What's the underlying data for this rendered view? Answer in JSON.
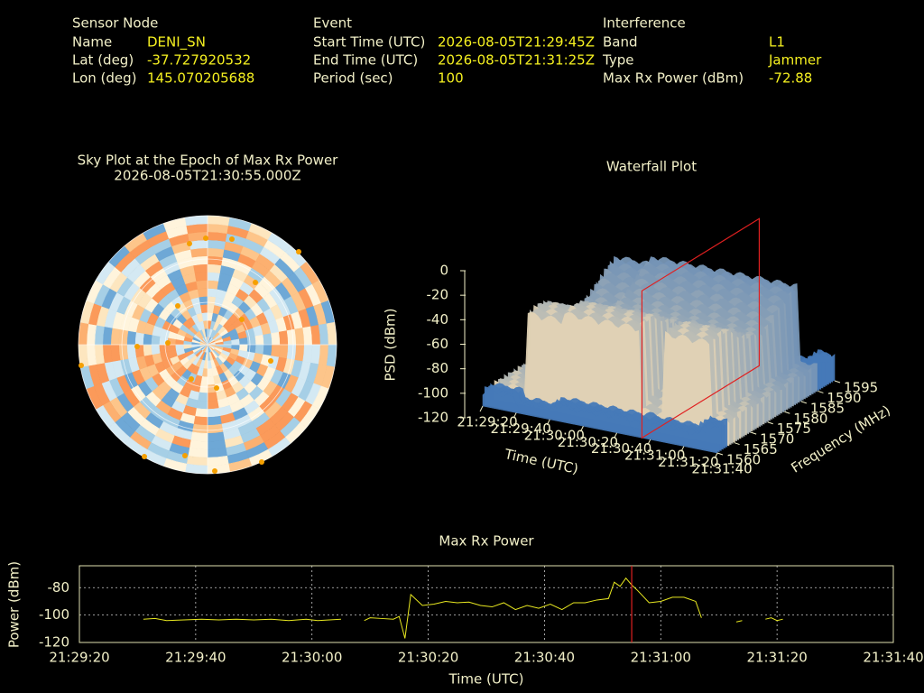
{
  "info": [
    {
      "title": "Sensor Node",
      "rows": [
        [
          "Name",
          "DENI_SN"
        ],
        [
          "Lat (deg)",
          "-37.727920532"
        ],
        [
          "Lon (deg)",
          "145.070205688"
        ]
      ]
    },
    {
      "title": "Event",
      "rows": [
        [
          "Start Time (UTC)",
          "2026-08-05T21:29:45Z"
        ],
        [
          "End Time (UTC)",
          "2026-08-05T21:31:25Z"
        ],
        [
          "Period (sec)",
          "100"
        ]
      ]
    },
    {
      "title": "Interference",
      "rows": [
        [
          "Band",
          "L1"
        ],
        [
          "Type",
          "Jammer"
        ],
        [
          "Max Rx Power (dBm)",
          "-72.88"
        ]
      ]
    }
  ],
  "chart_data": [
    {
      "type": "polar",
      "title": "Sky Plot at the Epoch of Max Rx Power",
      "subtitle": "2026-08-05T21:30:55.000Z"
    },
    {
      "type": "surface3d",
      "title": "Waterfall Plot",
      "xlabel": "Time (UTC)",
      "ylabel": "Frequency (MHz)",
      "zlabel": "PSD (dBm)",
      "xlim": [
        "21:29:20",
        "21:31:40"
      ],
      "xticks": [
        "21:29:20",
        "21:29:40",
        "21:30:00",
        "21:30:20",
        "21:30:40",
        "21:31:00",
        "21:31:20",
        "21:31:40"
      ],
      "ylim": [
        1560,
        1595
      ],
      "yticks": [
        1560,
        1565,
        1570,
        1575,
        1580,
        1585,
        1590,
        1595
      ],
      "zlim": [
        -120,
        0
      ],
      "zticks": [
        0,
        -20,
        -40,
        -60,
        -80,
        -100,
        -120
      ],
      "marker_x": "21:30:55",
      "marker_color": "#e02020"
    },
    {
      "type": "line",
      "title": "Max Rx Power",
      "xlabel": "Time (UTC)",
      "ylabel": "Power (dBm)",
      "xlim": [
        "21:29:20",
        "21:31:40"
      ],
      "xticks": [
        "21:29:20",
        "21:29:40",
        "21:30:00",
        "21:30:20",
        "21:30:40",
        "21:31:00",
        "21:31:20",
        "21:31:40"
      ],
      "ylim": [
        -120,
        -64
      ],
      "yticks": [
        -120,
        -100,
        -80
      ],
      "grid": true,
      "color": "#e8e820",
      "marker_x": "21:30:55",
      "marker_color": "#e02020",
      "x": [
        "21:29:31",
        "21:29:33",
        "21:29:35",
        "21:29:38",
        "21:29:41",
        "21:29:44",
        "21:29:47",
        "21:29:50",
        "21:29:53",
        "21:29:56",
        "21:29:59",
        "21:30:01",
        "21:30:03",
        "21:30:05",
        "21:30:07",
        "21:30:09",
        "21:30:10",
        "21:30:12",
        "21:30:14",
        "21:30:15",
        "21:30:16",
        "21:30:17",
        "21:30:19",
        "21:30:21",
        "21:30:23",
        "21:30:25",
        "21:30:27",
        "21:30:29",
        "21:30:31",
        "21:30:33",
        "21:30:35",
        "21:30:37",
        "21:30:39",
        "21:30:41",
        "21:30:43",
        "21:30:45",
        "21:30:47",
        "21:30:49",
        "21:30:51",
        "21:30:52",
        "21:30:53",
        "21:30:54",
        "21:30:55",
        "21:30:56",
        "21:30:58",
        "21:31:00",
        "21:31:02",
        "21:31:04",
        "21:31:06",
        "21:31:07",
        "21:31:10",
        "21:31:13",
        "21:31:14",
        "21:31:16",
        "21:31:18",
        "21:31:19",
        "21:31:20",
        "21:31:21"
      ],
      "values": [
        -103,
        -102.5,
        -104,
        -103.5,
        -103,
        -103.5,
        -103,
        -103.5,
        -103,
        -104,
        -103,
        -104,
        -103.5,
        -103,
        null,
        -104,
        -102,
        -102.5,
        -103,
        -101,
        -117,
        -85,
        -93,
        -92,
        -90,
        -91,
        -90.5,
        -93,
        -94,
        -91,
        -96,
        -93,
        -95,
        -92,
        -96,
        -91,
        -91,
        -89,
        -88,
        -76,
        -79,
        -73,
        -78,
        -82,
        -91,
        -90,
        -87,
        -87,
        -90,
        -102,
        null,
        -105,
        -104,
        null,
        -103,
        -102,
        -104,
        -103
      ]
    }
  ]
}
